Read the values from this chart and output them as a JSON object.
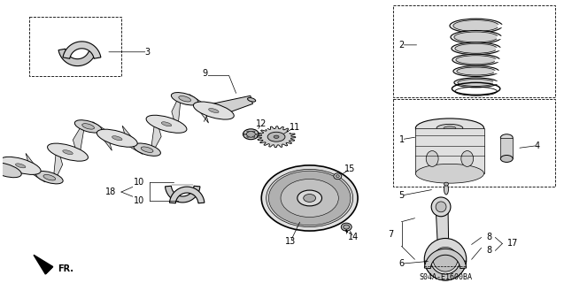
{
  "background_color": "#ffffff",
  "diagram_code": "S04A-E1600BA",
  "figsize": [
    6.37,
    3.2
  ],
  "dpi": 100,
  "label_fontsize": 7,
  "code_fontsize": 6,
  "black": "#000000",
  "gray1": "#cccccc",
  "gray2": "#aaaaaa",
  "gray3": "#888888",
  "lw": 0.7
}
